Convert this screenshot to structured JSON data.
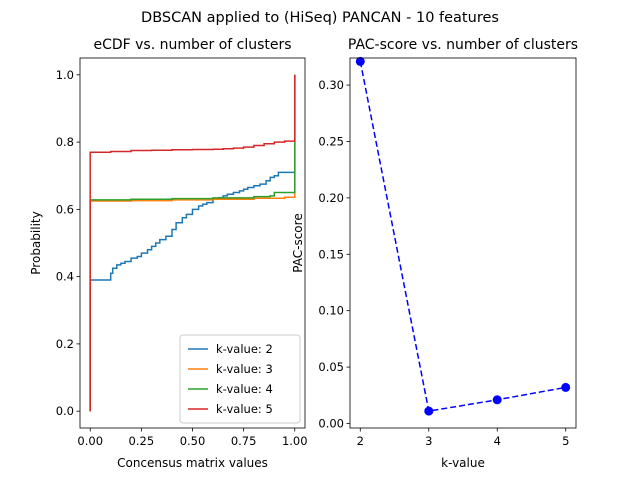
{
  "figure": {
    "suptitle": "DBSCAN applied to (HiSeq) PANCAN - 10 features"
  },
  "chart_data": [
    {
      "type": "line",
      "title": "eCDF vs. number of clusters",
      "xlabel": "Concensus matrix values",
      "ylabel": "Probability",
      "xlim": [
        -0.05,
        1.05
      ],
      "ylim": [
        -0.05,
        1.05
      ],
      "xticks": [
        0.0,
        0.25,
        0.5,
        0.75,
        1.0
      ],
      "xtick_labels": [
        "0.00",
        "0.25",
        "0.50",
        "0.75",
        "1.00"
      ],
      "yticks": [
        0.0,
        0.2,
        0.4,
        0.6,
        0.8,
        1.0
      ],
      "ytick_labels": [
        "0.0",
        "0.2",
        "0.4",
        "0.6",
        "0.8",
        "1.0"
      ],
      "grid": false,
      "legend_position": "lower-right",
      "series": [
        {
          "name": "k-value: 2",
          "color": "#1f77b4",
          "x": [
            0.0,
            0.0,
            0.005,
            0.08,
            0.1,
            0.11,
            0.13,
            0.15,
            0.17,
            0.2,
            0.23,
            0.25,
            0.28,
            0.3,
            0.32,
            0.34,
            0.37,
            0.4,
            0.42,
            0.45,
            0.47,
            0.5,
            0.53,
            0.55,
            0.57,
            0.6,
            0.63,
            0.65,
            0.67,
            0.7,
            0.73,
            0.75,
            0.77,
            0.8,
            0.83,
            0.86,
            0.88,
            0.9,
            0.92,
            0.95,
            1.0,
            1.0,
            1.0
          ],
          "y": [
            0.0,
            0.39,
            0.39,
            0.39,
            0.41,
            0.425,
            0.435,
            0.44,
            0.445,
            0.455,
            0.46,
            0.47,
            0.48,
            0.49,
            0.5,
            0.51,
            0.52,
            0.54,
            0.56,
            0.575,
            0.585,
            0.6,
            0.61,
            0.615,
            0.62,
            0.63,
            0.635,
            0.64,
            0.645,
            0.65,
            0.655,
            0.66,
            0.665,
            0.67,
            0.675,
            0.685,
            0.695,
            0.7,
            0.71,
            0.71,
            0.71,
            0.8,
            1.0
          ]
        },
        {
          "name": "k-value: 3",
          "color": "#ff7f0e",
          "x": [
            0.0,
            0.0,
            0.005,
            0.2,
            0.4,
            0.6,
            0.8,
            0.95,
            1.0,
            1.0,
            1.0
          ],
          "y": [
            0.0,
            0.625,
            0.625,
            0.626,
            0.628,
            0.63,
            0.633,
            0.636,
            0.638,
            0.8,
            1.0
          ]
        },
        {
          "name": "k-value: 4",
          "color": "#2ca02c",
          "x": [
            0.0,
            0.0,
            0.005,
            0.2,
            0.4,
            0.6,
            0.8,
            0.88,
            0.9,
            0.95,
            1.0,
            1.0,
            1.0
          ],
          "y": [
            0.0,
            0.628,
            0.628,
            0.63,
            0.632,
            0.634,
            0.638,
            0.64,
            0.65,
            0.65,
            0.65,
            0.8,
            1.0
          ]
        },
        {
          "name": "k-value: 5",
          "color": "#d62728",
          "x": [
            0.0,
            0.0,
            0.005,
            0.1,
            0.2,
            0.3,
            0.4,
            0.5,
            0.6,
            0.65,
            0.7,
            0.75,
            0.8,
            0.85,
            0.9,
            0.95,
            1.0,
            1.0,
            1.0
          ],
          "y": [
            0.0,
            0.77,
            0.77,
            0.772,
            0.775,
            0.776,
            0.777,
            0.778,
            0.779,
            0.78,
            0.782,
            0.785,
            0.79,
            0.795,
            0.8,
            0.803,
            0.803,
            0.9,
            1.0
          ]
        }
      ]
    },
    {
      "type": "line",
      "title": "PAC-score vs. number of clusters",
      "xlabel": "k-value",
      "ylabel": "PAC-score",
      "xlim": [
        1.85,
        5.15
      ],
      "ylim": [
        -0.004,
        0.324
      ],
      "xticks": [
        2,
        3,
        4,
        5
      ],
      "xtick_labels": [
        "2",
        "3",
        "4",
        "5"
      ],
      "yticks": [
        0.0,
        0.05,
        0.1,
        0.15,
        0.2,
        0.25,
        0.3
      ],
      "ytick_labels": [
        "0.00",
        "0.05",
        "0.10",
        "0.15",
        "0.20",
        "0.25",
        "0.30"
      ],
      "grid": false,
      "series": [
        {
          "color": "#0000ff",
          "line_style": "dashed",
          "marker": "circle",
          "x": [
            2,
            3,
            4,
            5
          ],
          "y": [
            0.321,
            0.011,
            0.021,
            0.032
          ]
        }
      ]
    }
  ]
}
